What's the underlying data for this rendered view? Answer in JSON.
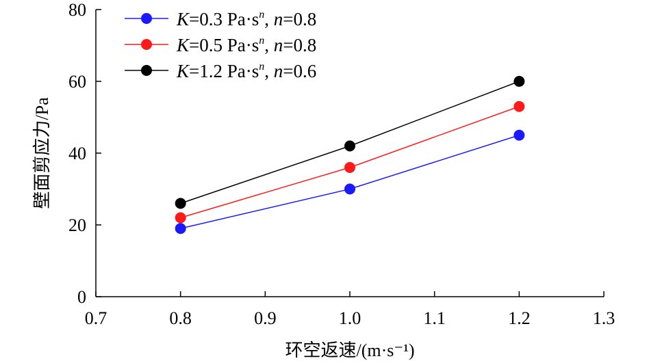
{
  "chart_data": {
    "type": "line",
    "title": "",
    "xlabel": "环空返速/(m·s⁻¹)",
    "ylabel": "壁面剪应力/Pa",
    "xlim": [
      0.7,
      1.3
    ],
    "ylim": [
      0,
      80
    ],
    "xticks": [
      "0.7",
      "0.8",
      "0.9",
      "1.0",
      "1.1",
      "1.2",
      "1.3"
    ],
    "xtick_values": [
      0.7,
      0.8,
      0.9,
      1.0,
      1.1,
      1.2,
      1.3
    ],
    "yticks": [
      "0",
      "20",
      "40",
      "60",
      "80"
    ],
    "ytick_values": [
      0,
      20,
      40,
      60,
      80
    ],
    "grid": false,
    "legend_position": "top-left",
    "x": [
      0.8,
      1.0,
      1.2
    ],
    "series": [
      {
        "name": "K=0.3 Pa·sⁿ, n=0.8",
        "color": "#1a1aff",
        "values": [
          19,
          30,
          45
        ],
        "legend": {
          "k_sym": "K",
          "k_val": "=0.3 Pa·s",
          "exp": "n",
          "sep": ", ",
          "n_sym": "n",
          "n_val": "=0.8"
        }
      },
      {
        "name": "K=0.5 Pa·sⁿ, n=0.8",
        "color": "#ff1a1a",
        "values": [
          22,
          36,
          53
        ],
        "legend": {
          "k_sym": "K",
          "k_val": "=0.5 Pa·s",
          "exp": "n",
          "sep": ", ",
          "n_sym": "n",
          "n_val": "=0.8"
        }
      },
      {
        "name": "K=1.2 Pa·sⁿ, n=0.6",
        "color": "#000000",
        "values": [
          26,
          42,
          60
        ],
        "legend": {
          "k_sym": "K",
          "k_val": "=1.2 Pa·s",
          "exp": "n",
          "sep": ", ",
          "n_sym": "n",
          "n_val": "=0.6"
        }
      }
    ]
  }
}
